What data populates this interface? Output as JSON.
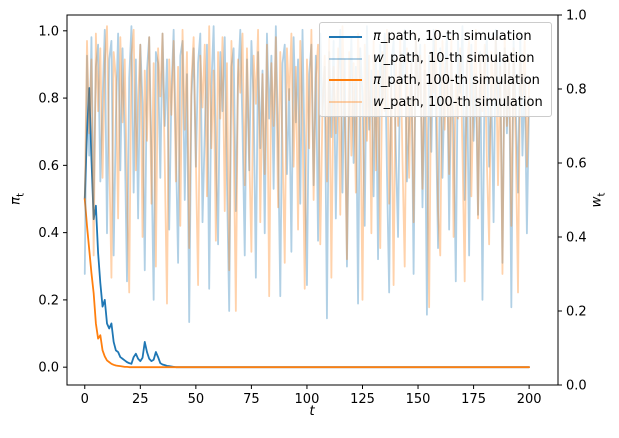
{
  "chart_data": {
    "type": "line",
    "title": "",
    "xlabel": "t",
    "ylabel_left": "π_t",
    "ylabel_right": "w_t",
    "grid": false,
    "legend_position": "upper right",
    "x_start": 0,
    "x_end": 200,
    "xlim": [
      -8,
      213
    ],
    "ylim_left": [
      -0.053,
      1.047
    ],
    "ylim_right": [
      0.0,
      1.0
    ],
    "x_ticks": [
      0,
      25,
      50,
      75,
      100,
      125,
      150,
      175,
      200
    ],
    "x_tick_labels": [
      "0",
      "25",
      "50",
      "75",
      "100",
      "125",
      "150",
      "175",
      "200"
    ],
    "y_ticks_left": [
      0.0,
      0.2,
      0.4,
      0.6,
      0.8,
      1.0
    ],
    "y_tick_labels_left": [
      "0.0",
      "0.2",
      "0.4",
      "0.6",
      "0.8",
      "1.0"
    ],
    "y_ticks_right": [
      0.0,
      0.2,
      0.4,
      0.6,
      0.8,
      1.0
    ],
    "y_tick_labels_right": [
      "0.0",
      "0.2",
      "0.4",
      "0.6",
      "0.8",
      "1.0"
    ],
    "legend": {
      "items": [
        {
          "sym": "π",
          "rest": "_path, 10-th simulation"
        },
        {
          "sym": "w",
          "rest": "_path, 10-th simulation"
        },
        {
          "sym": "π",
          "rest": "_path, 100-th simulation"
        },
        {
          "sym": "w",
          "rest": "_path, 100-th simulation"
        }
      ]
    },
    "series": [
      {
        "name": "π_path, 10-th simulation",
        "axis": "left",
        "color": "#1f77b4",
        "width": 1.8,
        "values": [
          0.5,
          0.7,
          0.83,
          0.62,
          0.44,
          0.48,
          0.34,
          0.25,
          0.18,
          0.2,
          0.13,
          0.115,
          0.13,
          0.075,
          0.05,
          0.045,
          0.03,
          0.025,
          0.02,
          0.015,
          0.012,
          0.01,
          0.03,
          0.04,
          0.025,
          0.018,
          0.028,
          0.075,
          0.045,
          0.025,
          0.018,
          0.022,
          0.045,
          0.03,
          0.012,
          0.008,
          0.006,
          0.004,
          0.003,
          0.002,
          0.001,
          0,
          0,
          0,
          0,
          0,
          0,
          0,
          0,
          0,
          0,
          0,
          0,
          0,
          0,
          0,
          0,
          0,
          0,
          0,
          0,
          0,
          0,
          0,
          0,
          0,
          0,
          0,
          0,
          0,
          0,
          0,
          0,
          0,
          0,
          0,
          0,
          0,
          0,
          0,
          0,
          0,
          0,
          0,
          0,
          0,
          0,
          0,
          0,
          0,
          0,
          0,
          0,
          0,
          0,
          0,
          0,
          0,
          0,
          0,
          0,
          0,
          0,
          0,
          0,
          0,
          0,
          0,
          0,
          0,
          0,
          0,
          0,
          0,
          0,
          0,
          0,
          0,
          0,
          0,
          0,
          0,
          0,
          0,
          0,
          0,
          0,
          0,
          0,
          0,
          0,
          0,
          0,
          0,
          0,
          0,
          0,
          0,
          0,
          0,
          0,
          0,
          0,
          0,
          0,
          0,
          0,
          0,
          0,
          0,
          0,
          0,
          0,
          0,
          0,
          0,
          0,
          0,
          0,
          0,
          0,
          0,
          0,
          0,
          0,
          0,
          0,
          0,
          0,
          0,
          0,
          0,
          0,
          0,
          0,
          0,
          0,
          0,
          0,
          0,
          0,
          0,
          0,
          0,
          0,
          0,
          0,
          0,
          0,
          0,
          0,
          0,
          0,
          0,
          0,
          0,
          0,
          0,
          0,
          0,
          0
        ]
      },
      {
        "name": "w_path, 10-th simulation",
        "axis": "right",
        "color": "rgba(31,119,180,0.35)",
        "width": 1.8,
        "values": [
          0.3,
          0.89,
          0.62,
          0.94,
          0.48,
          0.86,
          0.92,
          0.55,
          0.77,
          0.96,
          0.41,
          0.88,
          0.93,
          0.35,
          0.72,
          0.95,
          0.58,
          0.91,
          0.66,
          0.28,
          0.83,
          0.97,
          0.52,
          0.88,
          0.45,
          0.92,
          0.76,
          0.31,
          0.85,
          0.94,
          0.62,
          0.23,
          0.9,
          0.87,
          0.56,
          0.95,
          0.7,
          0.88,
          0.42,
          0.79,
          0.96,
          0.65,
          0.33,
          0.89,
          0.93,
          0.5,
          0.84,
          0.17,
          0.78,
          0.91,
          0.59,
          0.87,
          0.95,
          0.44,
          0.68,
          0.92,
          0.26,
          0.81,
          0.97,
          0.63,
          0.38,
          0.9,
          0.74,
          0.94,
          0.55,
          0.2,
          0.86,
          0.91,
          0.47,
          0.83,
          0.96,
          0.69,
          0.35,
          0.88,
          0.58,
          0.93,
          0.77,
          0.29,
          0.9,
          0.64,
          0.85,
          0.41,
          0.95,
          0.72,
          0.89,
          0.53,
          0.97,
          0.66,
          0.24,
          0.87,
          0.92,
          0.57,
          0.8,
          0.36,
          0.94,
          0.71,
          0.88,
          0.49,
          0.96,
          0.61,
          0.27,
          0.84,
          0.92,
          0.54,
          0.89,
          0.39,
          0.95,
          0.73,
          0.86,
          0.18,
          0.9,
          0.67,
          0.93,
          0.45,
          0.81,
          0.96,
          0.52,
          0.88,
          0.32,
          0.75,
          0.94,
          0.6,
          0.86,
          0.22,
          0.91,
          0.78,
          0.43,
          0.97,
          0.69,
          0.85,
          0.51,
          0.89,
          0.34,
          0.92,
          0.76,
          0.95,
          0.58,
          0.25,
          0.87,
          0.93,
          0.64,
          0.4,
          0.9,
          0.82,
          0.96,
          0.55,
          0.71,
          0.88,
          0.3,
          0.94,
          0.77,
          0.92,
          0.48,
          0.85,
          0.19,
          0.89,
          0.63,
          0.96,
          0.74,
          0.37,
          0.91,
          0.56,
          0.83,
          0.95,
          0.42,
          0.87,
          0.7,
          0.28,
          0.93,
          0.79,
          0.97,
          0.5,
          0.88,
          0.35,
          0.92,
          0.66,
          0.84,
          0.46,
          0.9,
          0.23,
          0.86,
          0.94,
          0.59,
          0.81,
          0.44,
          0.96,
          0.73,
          0.89,
          0.33,
          0.91,
          0.68,
          0.87,
          0.21,
          0.93,
          0.75,
          0.52,
          0.95,
          0.62,
          0.84,
          0.41,
          0.78
        ]
      },
      {
        "name": "π_path, 100-th simulation",
        "axis": "left",
        "color": "#ff7f0e",
        "width": 1.8,
        "values": [
          0.5,
          0.42,
          0.35,
          0.28,
          0.22,
          0.13,
          0.085,
          0.095,
          0.05,
          0.032,
          0.02,
          0.015,
          0.01,
          0.007,
          0.005,
          0.004,
          0.003,
          0.002,
          0.001,
          0.001,
          0,
          0,
          0,
          0,
          0,
          0,
          0,
          0,
          0,
          0,
          0,
          0,
          0,
          0,
          0,
          0,
          0,
          0,
          0,
          0,
          0,
          0,
          0,
          0,
          0,
          0,
          0,
          0,
          0,
          0,
          0,
          0,
          0,
          0,
          0,
          0,
          0,
          0,
          0,
          0,
          0,
          0,
          0,
          0,
          0,
          0,
          0,
          0,
          0,
          0,
          0,
          0,
          0,
          0,
          0,
          0,
          0,
          0,
          0,
          0,
          0,
          0,
          0,
          0,
          0,
          0,
          0,
          0,
          0,
          0,
          0,
          0,
          0,
          0,
          0,
          0,
          0,
          0,
          0,
          0,
          0,
          0,
          0,
          0,
          0,
          0,
          0,
          0,
          0,
          0,
          0,
          0,
          0,
          0,
          0,
          0,
          0,
          0,
          0,
          0,
          0,
          0,
          0,
          0,
          0,
          0,
          0,
          0,
          0,
          0,
          0,
          0,
          0,
          0,
          0,
          0,
          0,
          0,
          0,
          0,
          0,
          0,
          0,
          0,
          0,
          0,
          0,
          0,
          0,
          0,
          0,
          0,
          0,
          0,
          0,
          0,
          0,
          0,
          0,
          0,
          0,
          0,
          0,
          0,
          0,
          0,
          0,
          0,
          0,
          0,
          0,
          0,
          0,
          0,
          0,
          0,
          0,
          0,
          0,
          0,
          0,
          0,
          0,
          0,
          0,
          0,
          0,
          0,
          0,
          0,
          0,
          0,
          0,
          0,
          0,
          0,
          0,
          0,
          0,
          0,
          0
        ]
      },
      {
        "name": "w_path, 100-th simulation",
        "axis": "right",
        "color": "rgba(255,127,14,0.35)",
        "width": 1.8,
        "values": [
          0.5,
          0.93,
          0.68,
          0.88,
          0.35,
          0.95,
          0.74,
          0.91,
          0.56,
          0.87,
          0.97,
          0.62,
          0.29,
          0.9,
          0.83,
          0.45,
          0.94,
          0.71,
          0.88,
          0.53,
          0.25,
          0.89,
          0.96,
          0.58,
          0.77,
          0.92,
          0.4,
          0.85,
          0.66,
          0.94,
          0.49,
          0.87,
          0.32,
          0.91,
          0.78,
          0.95,
          0.6,
          0.22,
          0.88,
          0.73,
          0.93,
          0.55,
          0.86,
          0.43,
          0.96,
          0.69,
          0.9,
          0.37,
          0.82,
          0.94,
          0.61,
          0.27,
          0.89,
          0.75,
          0.92,
          0.51,
          0.97,
          0.64,
          0.85,
          0.39,
          0.9,
          0.72,
          0.94,
          0.47,
          0.87,
          0.31,
          0.93,
          0.67,
          0.2,
          0.88,
          0.79,
          0.95,
          0.54,
          0.91,
          0.63,
          0.36,
          0.89,
          0.76,
          0.96,
          0.44,
          0.84,
          0.57,
          0.92,
          0.24,
          0.87,
          0.7,
          0.94,
          0.48,
          0.9,
          0.65,
          0.33,
          0.91,
          0.77,
          0.95,
          0.59,
          0.86,
          0.42,
          0.93,
          0.71,
          0.26,
          0.88,
          0.64,
          0.96,
          0.5,
          0.83,
          0.92,
          0.38,
          0.75,
          0.89,
          0.55,
          0.94,
          0.29,
          0.86,
          0.68,
          0.91,
          0.46,
          0.97,
          0.73,
          0.34,
          0.9,
          0.62,
          0.87,
          0.52,
          0.95,
          0.78,
          0.23,
          0.92,
          0.66,
          0.89,
          0.41,
          0.93,
          0.58,
          0.85,
          0.37,
          0.9,
          0.74,
          0.96,
          0.49,
          0.81,
          0.27,
          0.88,
          0.7,
          0.94,
          0.61,
          0.32,
          0.91,
          0.56,
          0.87,
          0.44,
          0.95,
          0.76,
          0.89,
          0.53,
          0.92,
          0.67,
          0.21,
          0.9,
          0.79,
          0.96,
          0.47,
          0.35,
          0.93,
          0.69,
          0.88,
          0.57,
          0.94,
          0.4,
          0.84,
          0.72,
          0.91,
          0.63,
          0.28,
          0.87,
          0.93,
          0.51,
          0.8,
          0.96,
          0.45,
          0.89,
          0.74,
          0.92,
          0.6,
          0.38,
          0.9,
          0.77,
          0.94,
          0.54,
          0.86,
          0.3,
          0.95,
          0.7,
          0.88,
          0.43,
          0.91,
          0.65,
          0.25,
          0.89,
          0.78,
          0.93,
          0.59,
          0.82
        ]
      }
    ]
  },
  "axes_labels": {
    "x": "t",
    "left_sym": "π",
    "left_sub": "t",
    "right_sym": "w",
    "right_sub": "t"
  }
}
